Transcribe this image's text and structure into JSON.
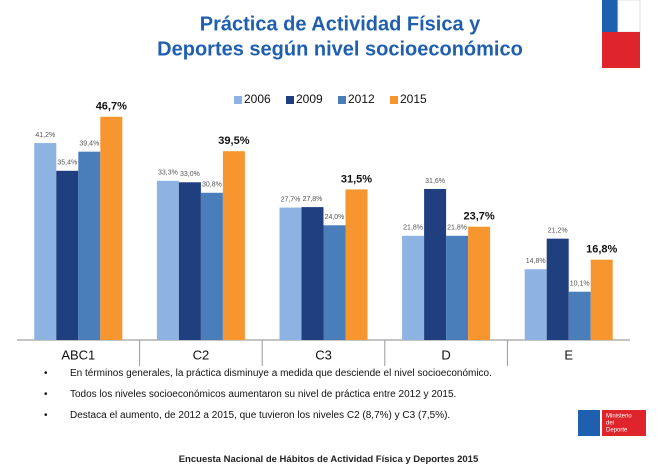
{
  "chart_data": {
    "type": "bar",
    "title": [
      "Práctica de Actividad Física y",
      "Deportes según nivel socioeconómico"
    ],
    "categories": [
      "ABC1",
      "C2",
      "C3",
      "D",
      "E"
    ],
    "series": [
      {
        "name": "2006",
        "color": "#8db3e2",
        "values": [
          41.2,
          33.3,
          27.7,
          21.8,
          14.8
        ],
        "value_labels": [
          "41,2%",
          "33,3%",
          "27,7%",
          "21,8%",
          "14,8%"
        ]
      },
      {
        "name": "2009",
        "color": "#1f3f7f",
        "values": [
          35.4,
          33.0,
          27.8,
          31.6,
          21.2
        ],
        "value_labels": [
          "35,4%",
          "33,0%",
          "27,8%",
          "31,6%",
          "21,2%"
        ]
      },
      {
        "name": "2012",
        "color": "#4a7ebb",
        "values": [
          39.4,
          30.8,
          24.0,
          21.8,
          10.1
        ],
        "value_labels": [
          "39,4%",
          "30,8%",
          "24,0%",
          "21,8%",
          "10,1%"
        ]
      },
      {
        "name": "2015",
        "color": "#f7962e",
        "values": [
          46.7,
          39.5,
          31.5,
          23.7,
          16.8
        ],
        "value_labels": [
          "46,7%",
          "39,5%",
          "31,5%",
          "23,7%",
          "16,8%"
        ]
      }
    ],
    "ylim": [
      0,
      50
    ],
    "legend": "top"
  },
  "notes": [
    "En términos generales, la práctica disminuye a medida que desciende el nivel socioeconómico.",
    "Todos los niveles socioeconómicos aumentaron su nivel de práctica entre 2012 y 2015.",
    "Destaca el aumento, de 2012 a 2015, que tuvieron los niveles C2 (8,7%) y C3 (7,5%)."
  ],
  "logo": [
    "Ministerio",
    "del",
    "Deporte"
  ],
  "footer": "Encuesta Nacional de Hábitos de Actividad Física y Deportes 2015"
}
